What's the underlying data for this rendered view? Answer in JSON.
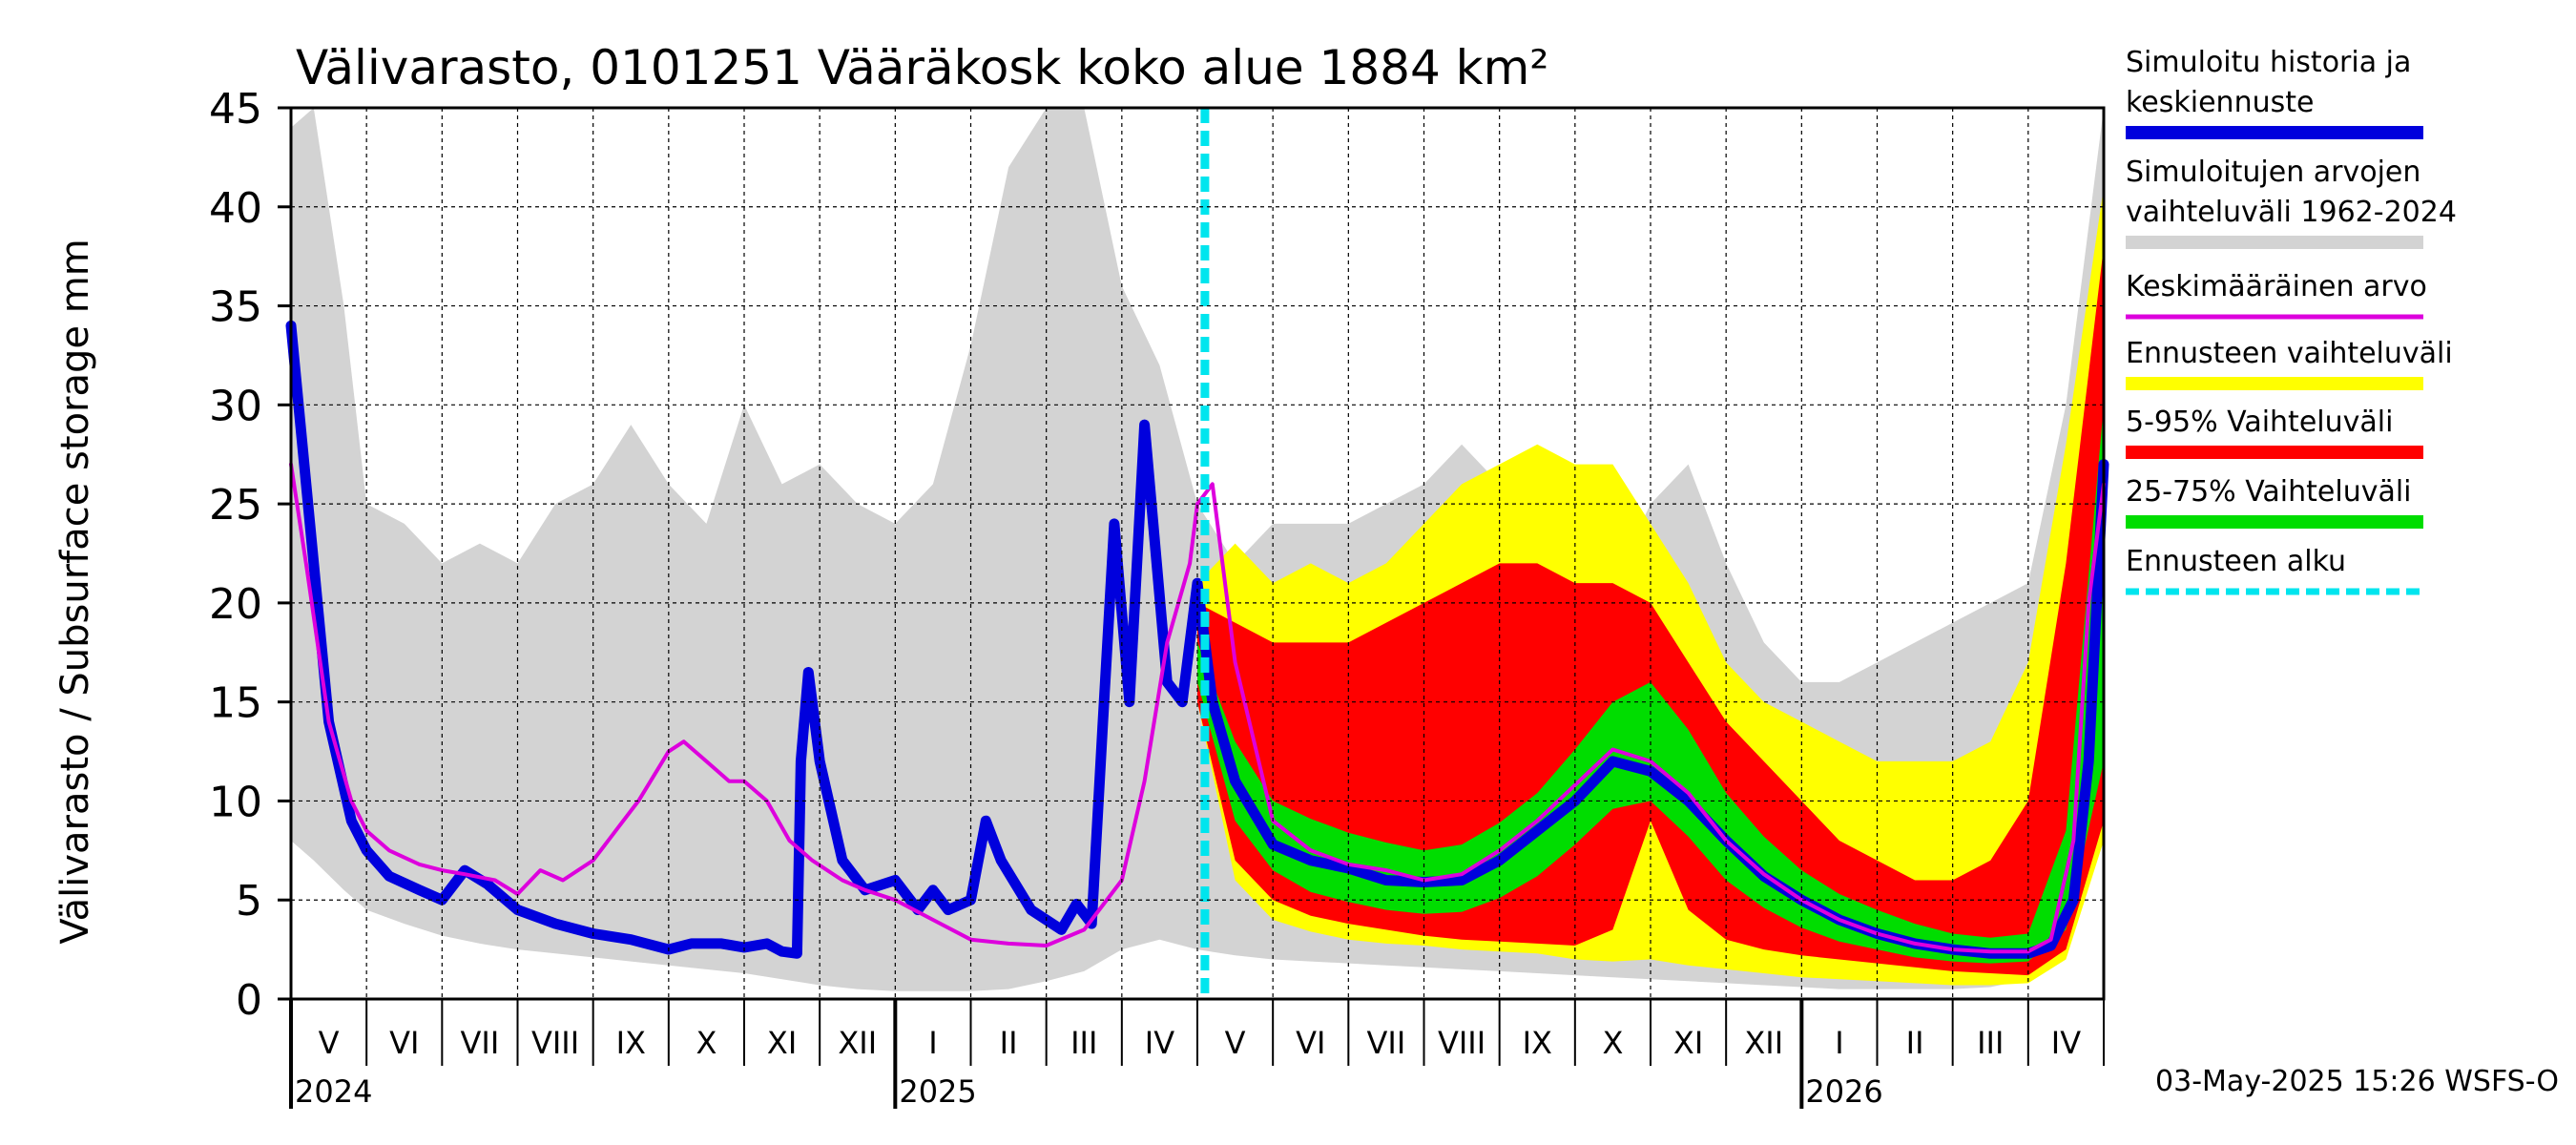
{
  "chart_data": {
    "type": "area",
    "title": "Välivarasto, 0101251 Vääräkosk koko alue 1884 km²",
    "ylabel": "Välivarasto / Subsurface storage  mm",
    "xlabel": "",
    "ylim": [
      0,
      45
    ],
    "yticks": [
      "0",
      "5",
      "10",
      "15",
      "20",
      "25",
      "30",
      "35",
      "40",
      "45"
    ],
    "month_labels": [
      "V",
      "VI",
      "VII",
      "VIII",
      "IX",
      "X",
      "XI",
      "XII",
      "I",
      "II",
      "III",
      "IV",
      "V",
      "VI",
      "VII",
      "VIII",
      "IX",
      "X",
      "XI",
      "XII",
      "I",
      "II",
      "III",
      "IV"
    ],
    "year_labels": [
      "2024",
      "2025",
      "2026"
    ],
    "forecast_start": "2025-05-03",
    "footer": "03-May-2025 15:26 WSFS-O",
    "legend": [
      {
        "label": "Simuloitu historia ja keskiennuste",
        "color": "#0000dd"
      },
      {
        "label": "Simuloitujen arvojen vaihteluväli 1962-2024",
        "color": "#d3d3d3"
      },
      {
        "label": "Keskimääräinen arvo",
        "color": "#dd00dd"
      },
      {
        "label": "Ennusteen vaihteluväli",
        "color": "#ffff00"
      },
      {
        "label": "5-95% Vaihteluväli",
        "color": "#ff0000"
      },
      {
        "label": "25-75% Vaihteluväli",
        "color": "#00dd00"
      },
      {
        "label": "Ennusteen alku",
        "color": "#00e5ee"
      }
    ],
    "series": [
      {
        "name": "Simuloitujen arvojen vaihteluväli 1962-2024",
        "t": [
          0,
          0.3,
          0.7,
          1,
          1.5,
          2,
          2.5,
          3,
          3.5,
          4,
          4.5,
          5,
          5.5,
          6,
          6.5,
          7,
          7.5,
          8,
          8.5,
          9,
          9.5,
          10,
          10.5,
          11,
          11.5,
          12,
          12.5,
          13,
          13.5,
          14,
          14.5,
          15,
          15.5,
          16,
          16.5,
          17,
          17.5,
          18,
          18.5,
          19,
          19.5,
          20,
          20.5,
          21,
          21.5,
          22,
          22.5,
          23,
          23.5,
          24
        ],
        "low": [
          8,
          7,
          5.5,
          4.5,
          3.8,
          3.2,
          2.8,
          2.5,
          2.3,
          2.1,
          1.9,
          1.7,
          1.5,
          1.3,
          1.0,
          0.7,
          0.5,
          0.4,
          0.4,
          0.4,
          0.5,
          0.9,
          1.4,
          2.5,
          3.0,
          2.5,
          2.2,
          2.0,
          1.9,
          1.8,
          1.7,
          1.6,
          1.5,
          1.4,
          1.3,
          1.2,
          1.1,
          1.0,
          0.9,
          0.8,
          0.7,
          0.6,
          0.5,
          0.5,
          0.5,
          0.5,
          0.6,
          1.0,
          3.0,
          8.0
        ],
        "high": [
          44,
          45,
          35,
          25,
          24,
          22,
          23,
          22,
          25,
          26,
          29,
          26,
          24,
          30,
          26,
          27,
          25,
          24,
          26,
          33,
          42,
          45,
          45,
          36,
          32,
          25,
          22,
          24,
          24,
          24,
          25,
          26,
          28,
          26,
          24,
          22,
          21,
          25,
          27,
          22,
          18,
          16,
          16,
          17,
          18,
          19,
          20,
          21,
          30,
          45
        ]
      },
      {
        "name": "Ennusteen vaihteluväli",
        "t": [
          12,
          12.5,
          13,
          13.5,
          14,
          14.5,
          15,
          15.5,
          16,
          16.5,
          17,
          17.5,
          18,
          18.5,
          19,
          19.5,
          20,
          20.5,
          21,
          21.5,
          22,
          22.5,
          23,
          23.5,
          24
        ],
        "low": [
          15,
          6,
          4,
          3.4,
          3.0,
          2.8,
          2.7,
          2.5,
          2.4,
          2.3,
          2.0,
          1.9,
          2.0,
          1.7,
          1.5,
          1.3,
          1.1,
          1.0,
          0.9,
          0.8,
          0.7,
          0.7,
          0.8,
          2.0,
          8.0
        ],
        "high": [
          21,
          23,
          21,
          22,
          21,
          22,
          24,
          26,
          27,
          28,
          27,
          27,
          24,
          21,
          17,
          15,
          14,
          13,
          12,
          12,
          12,
          13,
          17,
          28,
          41
        ]
      },
      {
        "name": "5-95% Vaihteluväli",
        "t": [
          12,
          12.5,
          13,
          13.5,
          14,
          14.5,
          15,
          15.5,
          16,
          16.5,
          17,
          17.5,
          18,
          18.5,
          19,
          19.5,
          20,
          20.5,
          21,
          21.5,
          22,
          22.5,
          23,
          23.5,
          24
        ],
        "low": [
          15,
          7,
          5,
          4.2,
          3.8,
          3.5,
          3.2,
          3.0,
          2.9,
          2.8,
          2.7,
          3.5,
          9,
          4.5,
          3.0,
          2.5,
          2.2,
          2.0,
          1.8,
          1.6,
          1.4,
          1.3,
          1.2,
          2.5,
          9.0
        ],
        "high": [
          20,
          19,
          18,
          18,
          18,
          19,
          20,
          21,
          22,
          22,
          21,
          21,
          20,
          17,
          14,
          12,
          10,
          8,
          7,
          6,
          6,
          7,
          10,
          22,
          38
        ]
      },
      {
        "name": "25-75% Vaihteluväli",
        "t": [
          12,
          12.5,
          13,
          13.5,
          14,
          14.5,
          15,
          15.5,
          16,
          16.5,
          17,
          17.5,
          18,
          18.5,
          19,
          19.5,
          20,
          20.5,
          21,
          21.5,
          22,
          22.5,
          23,
          23.5,
          24
        ],
        "low": [
          16,
          9,
          6.5,
          5.4,
          4.9,
          4.5,
          4.3,
          4.4,
          5.1,
          6.2,
          7.8,
          9.6,
          10,
          8.2,
          6.0,
          4.6,
          3.6,
          2.9,
          2.5,
          2.1,
          1.9,
          1.8,
          1.9,
          3.5,
          12
        ],
        "high": [
          18,
          13,
          10,
          9.1,
          8.4,
          7.9,
          7.5,
          7.8,
          8.9,
          10.4,
          12.6,
          15,
          16,
          13.6,
          10.4,
          8.2,
          6.5,
          5.3,
          4.5,
          3.8,
          3.3,
          3.1,
          3.3,
          8.5,
          30
        ]
      },
      {
        "name": "Simuloitu historia ja keskiennuste",
        "t": [
          0,
          0.1,
          0.3,
          0.5,
          0.8,
          1.0,
          1.3,
          1.7,
          2.0,
          2.3,
          2.6,
          3.0,
          3.5,
          4.0,
          4.5,
          5.0,
          5.3,
          5.7,
          6.0,
          6.3,
          6.5,
          6.7,
          6.75,
          6.85,
          7.0,
          7.3,
          7.6,
          8.0,
          8.3,
          8.5,
          8.7,
          9.0,
          9.2,
          9.4,
          9.8,
          10.2,
          10.4,
          10.6,
          10.75,
          10.9,
          11.1,
          11.3,
          11.6,
          11.8,
          12.0,
          12.2,
          12.5,
          13,
          13.5,
          14,
          14.5,
          15,
          15.5,
          16,
          16.5,
          17,
          17.5,
          18,
          18.5,
          19,
          19.5,
          20,
          20.5,
          21,
          21.5,
          22,
          22.5,
          23,
          23.3,
          23.6,
          23.8,
          24
        ],
        "values": [
          34,
          30,
          22,
          14,
          9,
          7.5,
          6.2,
          5.5,
          5.0,
          6.5,
          5.8,
          4.5,
          3.8,
          3.3,
          3.0,
          2.5,
          2.8,
          2.8,
          2.6,
          2.8,
          2.4,
          2.3,
          12,
          16.5,
          12,
          7,
          5.5,
          6,
          4.5,
          5.5,
          4.5,
          5,
          9,
          7,
          4.5,
          3.5,
          4.8,
          3.8,
          14,
          24,
          15,
          29,
          16,
          15,
          21,
          15,
          11,
          7.8,
          7.0,
          6.6,
          6.0,
          5.9,
          6.0,
          7.0,
          8.5,
          10.0,
          12.0,
          11.5,
          10.0,
          8.0,
          6.2,
          5.0,
          4.0,
          3.3,
          2.8,
          2.5,
          2.3,
          2.3,
          2.7,
          5,
          12,
          27
        ]
      },
      {
        "name": "Keskimääräinen arvo",
        "t": [
          0,
          0.2,
          0.5,
          0.8,
          1.0,
          1.3,
          1.7,
          2.0,
          2.3,
          2.7,
          3.0,
          3.3,
          3.6,
          4.0,
          4.3,
          4.6,
          5.0,
          5.2,
          5.5,
          5.8,
          6.0,
          6.3,
          6.6,
          6.9,
          7.3,
          7.6,
          8.0,
          8.5,
          9.0,
          9.5,
          10.0,
          10.5,
          11.0,
          11.3,
          11.6,
          11.9,
          12.0,
          12.2,
          12.5,
          13,
          13.5,
          14,
          14.5,
          15,
          15.5,
          16,
          16.5,
          17,
          17.5,
          18,
          18.5,
          19,
          19.5,
          20,
          20.5,
          21,
          21.5,
          22,
          22.5,
          23,
          23.3,
          23.6,
          23.8,
          24
        ],
        "values": [
          27,
          22,
          14,
          10,
          8.5,
          7.5,
          6.8,
          6.5,
          6.3,
          6.0,
          5.3,
          6.5,
          6.0,
          7.0,
          8.5,
          10,
          12.5,
          13,
          12,
          11,
          11,
          10,
          8,
          7,
          6,
          5.5,
          5,
          4,
          3,
          2.8,
          2.7,
          3.5,
          6,
          11,
          18,
          22,
          25,
          26,
          17,
          9,
          7.5,
          6.8,
          6.5,
          6.0,
          6.3,
          7.5,
          9.0,
          10.8,
          12.6,
          12.0,
          10.4,
          8.0,
          6.3,
          5.0,
          4.0,
          3.3,
          2.8,
          2.5,
          2.4,
          2.4,
          3,
          8,
          20,
          26
        ]
      }
    ]
  }
}
